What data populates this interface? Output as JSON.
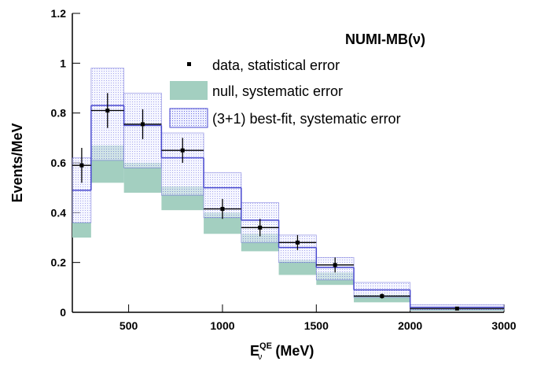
{
  "chart_data": {
    "type": "step-histogram",
    "title": "NUMI-MB(ν)",
    "x_label": {
      "base": "E",
      "superscript": "QE",
      "subscript": "ν",
      "unit": " (MeV)"
    },
    "y_label": "Events/MeV",
    "bins": [
      200,
      300,
      475,
      675,
      900,
      1100,
      1300,
      1500,
      1700,
      2000,
      3000
    ],
    "xlim": [
      200,
      3000
    ],
    "xticks": [
      500,
      1000,
      1500,
      2000,
      3000
    ],
    "ylim": [
      0,
      1.2
    ],
    "yticks": [
      0,
      0.2,
      0.4,
      0.6,
      0.8,
      1,
      1.2
    ],
    "series": [
      {
        "name": "null, systematic error",
        "color": "#a3cfc0",
        "low": [
          0.3,
          0.52,
          0.48,
          0.41,
          0.315,
          0.245,
          0.15,
          0.11,
          0.04,
          0.006
        ],
        "high": [
          0.36,
          0.67,
          0.6,
          0.505,
          0.4,
          0.315,
          0.21,
          0.16,
          0.07,
          0.013
        ]
      },
      {
        "name": "(3+1) best-fit, systematic error",
        "color": "#4a4ad0",
        "values": [
          0.49,
          0.83,
          0.75,
          0.62,
          0.5,
          0.37,
          0.26,
          0.18,
          0.09,
          0.02
        ],
        "low": [
          0.36,
          0.61,
          0.58,
          0.47,
          0.38,
          0.28,
          0.2,
          0.13,
          0.06,
          0.01
        ],
        "high": [
          0.62,
          0.98,
          0.88,
          0.72,
          0.56,
          0.44,
          0.31,
          0.22,
          0.12,
          0.03
        ]
      },
      {
        "name": "data, statistical error",
        "color": "#000000",
        "x": [
          250,
          387.5,
          575,
          787.5,
          1000,
          1200,
          1400,
          1600,
          1850,
          2500
        ],
        "values": [
          0.59,
          0.81,
          0.755,
          0.65,
          0.415,
          0.34,
          0.28,
          0.19,
          0.065,
          0.015
        ],
        "errors": [
          0.07,
          0.07,
          0.06,
          0.05,
          0.04,
          0.035,
          0.03,
          0.03,
          0.01,
          0.005
        ]
      }
    ]
  }
}
